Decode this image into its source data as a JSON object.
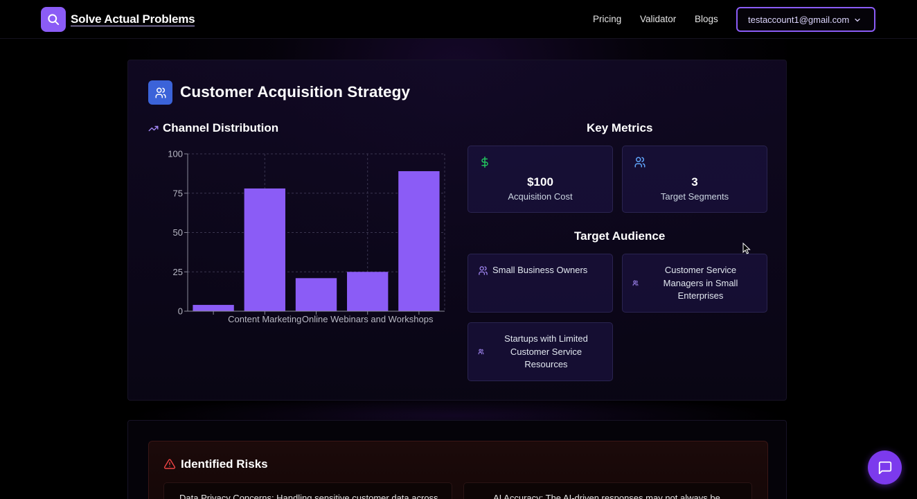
{
  "nav": {
    "brand": "Solve Actual Problems",
    "links": [
      "Pricing",
      "Validator",
      "Blogs"
    ],
    "account": "testaccount1@gmail.com"
  },
  "strategy": {
    "title": "Customer Acquisition Strategy",
    "channel_title": "Channel Distribution",
    "metrics_title": "Key Metrics",
    "metrics": [
      {
        "value": "$100",
        "label": "Acquisition Cost",
        "icon": "dollar-icon"
      },
      {
        "value": "3",
        "label": "Target Segments",
        "icon": "users-icon"
      }
    ],
    "audience_title": "Target Audience",
    "audience": [
      "Small Business Owners",
      [
        "Customer Service",
        "Managers in Small",
        "Enterprises"
      ],
      [
        "Startups with Limited",
        "Customer Service",
        "Resources"
      ]
    ]
  },
  "chart_data": {
    "type": "bar",
    "categories": [
      "",
      "Content Marketing",
      "",
      "Online Webinars and Workshops",
      ""
    ],
    "values": [
      4,
      78,
      21,
      25,
      89
    ],
    "ylim": [
      0,
      100
    ],
    "yticks": [
      0,
      25,
      50,
      75,
      100
    ],
    "color": "#8b5cf6",
    "grid": true
  },
  "risks": {
    "title": "Identified Risks",
    "items": [
      "Data Privacy Concerns: Handling sensitive customer data across",
      "AI Accuracy: The AI-driven responses may not always be"
    ]
  },
  "colors": {
    "accent": "#8b5cf6",
    "blue": "#3b63d9",
    "green": "#22c55e"
  }
}
